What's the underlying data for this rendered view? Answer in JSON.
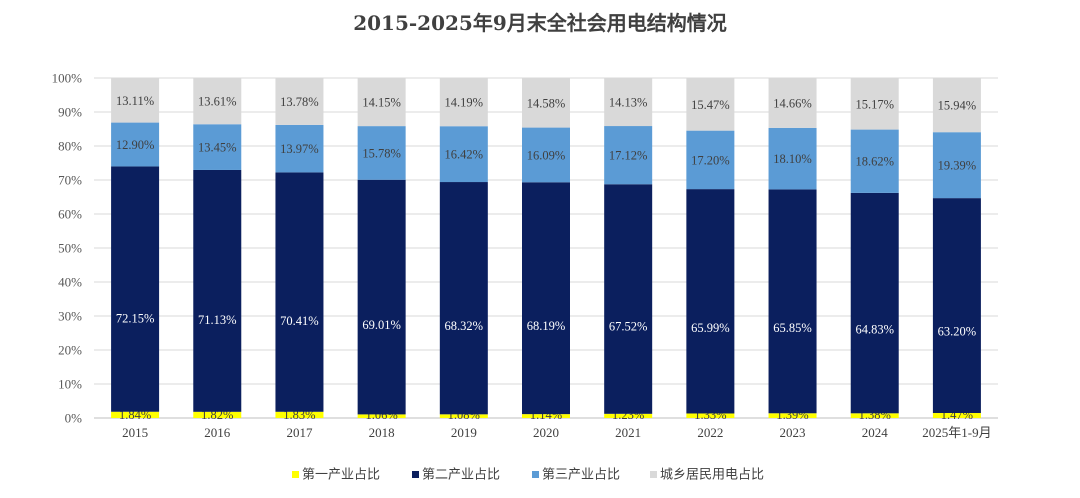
{
  "chart_data": {
    "type": "bar",
    "stacked": true,
    "title": "2015-2025年9月末全社会用电结构情况",
    "xlabel": "",
    "ylabel": "",
    "ylim": [
      0,
      100
    ],
    "y_ticks": [
      "0%",
      "10%",
      "20%",
      "30%",
      "40%",
      "50%",
      "60%",
      "70%",
      "80%",
      "90%",
      "100%"
    ],
    "categories": [
      "2015",
      "2016",
      "2017",
      "2018",
      "2019",
      "2020",
      "2021",
      "2022",
      "2023",
      "2024",
      "2025年1-9月"
    ],
    "grid": true,
    "legend_position": "bottom",
    "series": [
      {
        "name": "第一产业占比",
        "color": "#FFFF00",
        "values": [
          1.84,
          1.82,
          1.83,
          1.06,
          1.08,
          1.14,
          1.23,
          1.33,
          1.39,
          1.38,
          1.47
        ],
        "labels": [
          "1.84%",
          "1.82%",
          "1.83%",
          "1.06%",
          "1.08%",
          "1.14%",
          "1.23%",
          "1.33%",
          "1.39%",
          "1.38%",
          "1.47%"
        ],
        "label_color": "#404040"
      },
      {
        "name": "第二产业占比",
        "color": "#0B1F5E",
        "values": [
          72.15,
          71.13,
          70.41,
          69.01,
          68.32,
          68.19,
          67.52,
          65.99,
          65.85,
          64.83,
          63.2
        ],
        "labels": [
          "72.15%",
          "71.13%",
          "70.41%",
          "69.01%",
          "68.32%",
          "68.19%",
          "67.52%",
          "65.99%",
          "65.85%",
          "64.83%",
          "63.20%"
        ],
        "label_color": "#FFFFFF"
      },
      {
        "name": "第三产业占比",
        "color": "#5B9BD5",
        "values": [
          12.9,
          13.45,
          13.97,
          15.78,
          16.42,
          16.09,
          17.12,
          17.2,
          18.1,
          18.62,
          19.39
        ],
        "labels": [
          "12.90%",
          "13.45%",
          "13.97%",
          "15.78%",
          "16.42%",
          "16.09%",
          "17.12%",
          "17.20%",
          "18.10%",
          "18.62%",
          "19.39%"
        ],
        "label_color": "#404040"
      },
      {
        "name": "城乡居民用电占比",
        "color": "#D9D9D9",
        "values": [
          13.11,
          13.61,
          13.78,
          14.15,
          14.19,
          14.58,
          14.13,
          15.47,
          14.66,
          15.17,
          15.94
        ],
        "labels": [
          "13.11%",
          "13.61%",
          "13.78%",
          "14.15%",
          "14.19%",
          "14.58%",
          "14.13%",
          "15.47%",
          "14.66%",
          "15.17%",
          "15.94%"
        ],
        "label_color": "#404040"
      }
    ]
  }
}
